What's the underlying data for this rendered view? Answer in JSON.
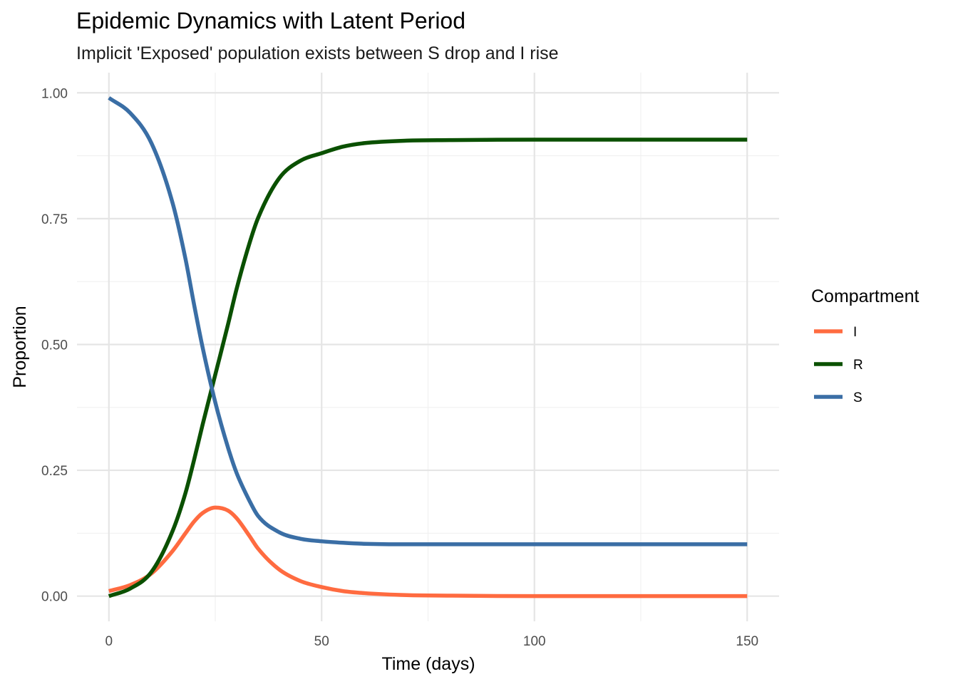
{
  "chart_data": {
    "type": "line",
    "title": "Epidemic Dynamics with Latent Period",
    "subtitle": "Implicit 'Exposed' population exists between S drop and I rise",
    "xlabel": "Time (days)",
    "ylabel": "Proportion",
    "xlim": [
      -7.5,
      157.5
    ],
    "ylim": [
      -0.05,
      1.04
    ],
    "x_ticks": [
      0,
      50,
      100,
      150
    ],
    "x_tick_labels": [
      "0",
      "50",
      "100",
      "150"
    ],
    "y_ticks": [
      0,
      0.25,
      0.5,
      0.75,
      1.0
    ],
    "y_tick_labels": [
      "0.00",
      "0.25",
      "0.50",
      "0.75",
      "1.00"
    ],
    "grid": true,
    "legend": {
      "title": "Compartment",
      "position": "right"
    },
    "x": [
      0,
      5,
      10,
      15,
      18,
      20,
      22,
      25,
      28,
      30,
      33,
      35,
      40,
      45,
      50,
      55,
      60,
      70,
      80,
      100,
      120,
      150
    ],
    "series": [
      {
        "name": "I",
        "color": "#FF6B40",
        "values": [
          0.01,
          0.022,
          0.045,
          0.09,
          0.125,
          0.148,
          0.165,
          0.176,
          0.17,
          0.155,
          0.12,
          0.095,
          0.053,
          0.03,
          0.018,
          0.01,
          0.006,
          0.002,
          0.001,
          0.0,
          0.0,
          0.0
        ]
      },
      {
        "name": "R",
        "color": "#0A5000",
        "values": [
          0.0,
          0.015,
          0.048,
          0.13,
          0.205,
          0.27,
          0.34,
          0.44,
          0.54,
          0.61,
          0.7,
          0.75,
          0.83,
          0.865,
          0.88,
          0.893,
          0.9,
          0.905,
          0.906,
          0.907,
          0.907,
          0.907
        ]
      },
      {
        "name": "S",
        "color": "#3A6EA5",
        "values": [
          0.99,
          0.96,
          0.9,
          0.78,
          0.67,
          0.58,
          0.495,
          0.385,
          0.295,
          0.245,
          0.19,
          0.16,
          0.127,
          0.114,
          0.109,
          0.106,
          0.104,
          0.103,
          0.103,
          0.103,
          0.103,
          0.103
        ]
      }
    ]
  }
}
